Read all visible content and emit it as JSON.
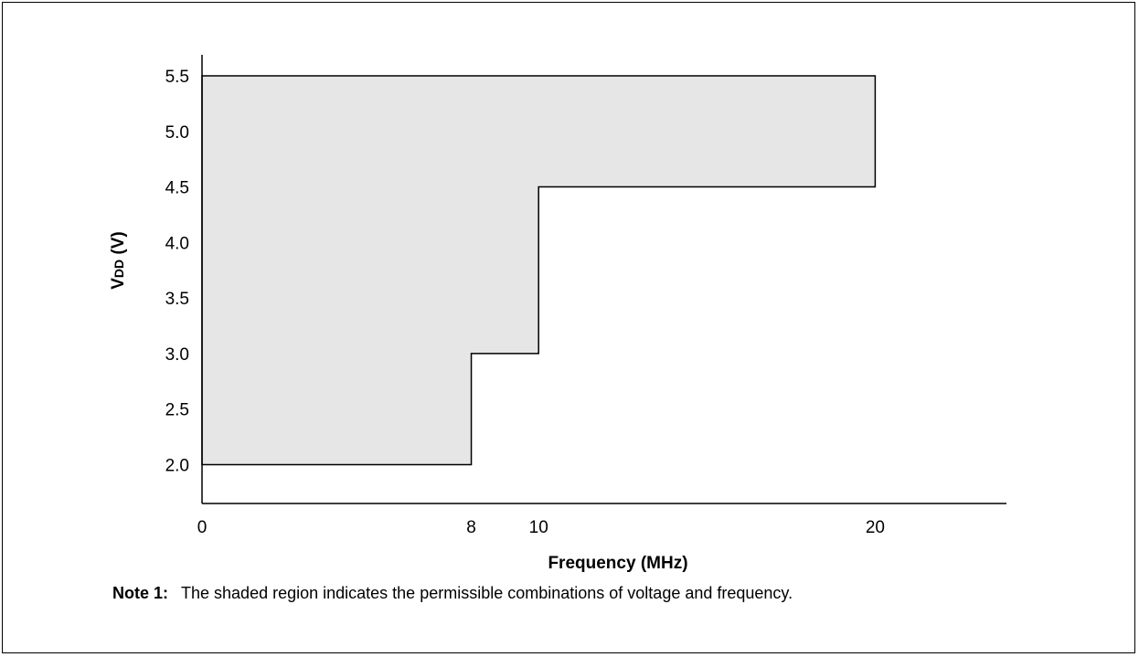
{
  "chart_data": {
    "type": "area",
    "xlabel": "Frequency (MHz)",
    "ylabel_main": "V",
    "ylabel_sub": "DD",
    "ylabel_suffix": " (V)",
    "x_ticks": [
      0,
      8,
      10,
      20
    ],
    "y_ticks": [
      "2.0",
      "2.5",
      "3.0",
      "3.5",
      "4.0",
      "4.5",
      "5.0",
      "5.5"
    ],
    "xlim": [
      0,
      23.9
    ],
    "ylim": [
      1.65,
      5.5
    ],
    "grid": false,
    "region": {
      "name": "",
      "fill": "#e6e6e6",
      "stroke": "#000000",
      "points": [
        [
          0,
          5.5
        ],
        [
          20,
          5.5
        ],
        [
          20,
          4.5
        ],
        [
          10,
          4.5
        ],
        [
          10,
          3.0
        ],
        [
          8,
          3.0
        ],
        [
          8,
          2.0
        ],
        [
          0,
          2.0
        ]
      ]
    }
  },
  "note": {
    "label": "Note 1:",
    "text": "The shaded region indicates the permissible combinations of voltage and frequency."
  }
}
